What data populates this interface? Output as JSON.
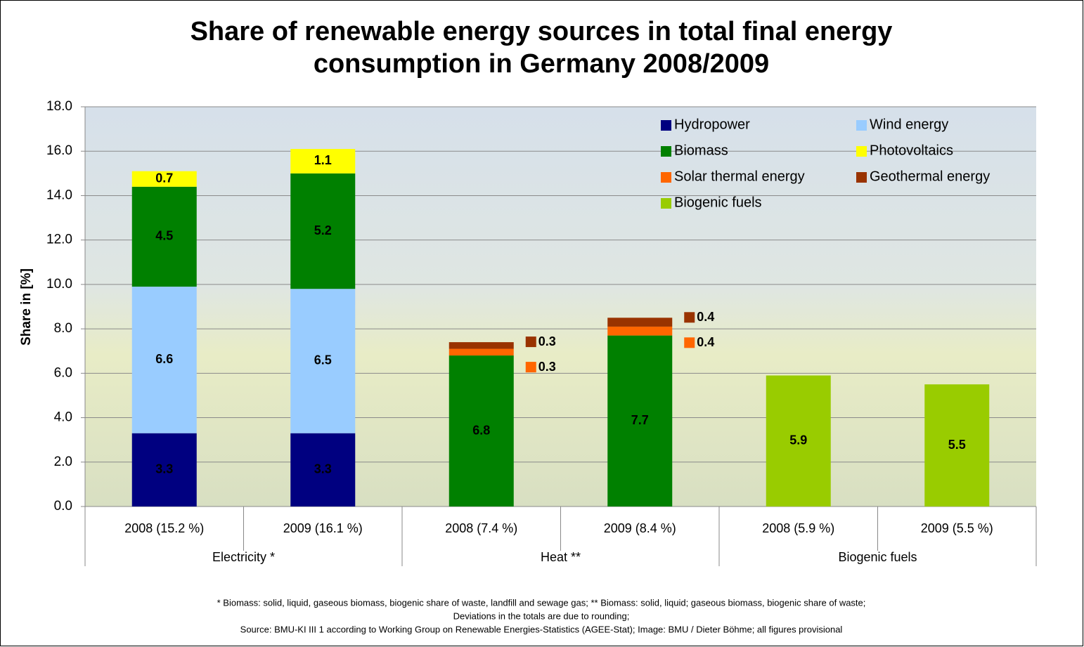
{
  "chart_data": {
    "type": "stacked_bar",
    "title": [
      "Share of renewable energy sources in total final energy",
      "consumption in Germany 2008/2009"
    ],
    "ylabel": "Share in [%]",
    "categories": [
      "2008 (15.2 %)",
      "2009 (16.1 %)",
      "2008 (7.4 %)",
      "2009 (8.4 %)",
      "2008 (5.9 %)",
      "2009 (5.5 %)"
    ],
    "groups": [
      "Electricity *",
      "Heat **",
      "Biogenic fuels"
    ],
    "series": [
      {
        "name": "Hydropower",
        "color": "#000080",
        "values": [
          3.3,
          3.3,
          null,
          null,
          null,
          null
        ]
      },
      {
        "name": "Wind energy",
        "color": "#99ccff",
        "values": [
          6.6,
          6.5,
          null,
          null,
          null,
          null
        ]
      },
      {
        "name": "Biomass",
        "color": "#008000",
        "values": [
          4.5,
          5.2,
          6.8,
          7.7,
          null,
          null
        ]
      },
      {
        "name": "Photovoltaics",
        "color": "#ffff00",
        "values": [
          0.7,
          1.1,
          null,
          null,
          null,
          null
        ]
      },
      {
        "name": "Solar thermal energy",
        "color": "#ff6600",
        "values": [
          null,
          null,
          0.3,
          0.4,
          null,
          null
        ]
      },
      {
        "name": "Geothermal energy",
        "color": "#993300",
        "values": [
          null,
          null,
          0.3,
          0.4,
          null,
          null
        ]
      },
      {
        "name": "Biogenic fuels",
        "color": "#99cc00",
        "values": [
          null,
          null,
          null,
          null,
          5.9,
          5.5
        ]
      }
    ],
    "ylim": [
      0,
      18
    ],
    "yticks": [
      {
        "value": 0,
        "label": "0.0"
      },
      {
        "value": 2,
        "label": "2.0"
      },
      {
        "value": 4,
        "label": "4.0"
      },
      {
        "value": 6,
        "label": "6.0"
      },
      {
        "value": 8,
        "label": "8.0"
      },
      {
        "value": 10,
        "label": "10.0"
      },
      {
        "value": 12,
        "label": "12.0"
      },
      {
        "value": 14,
        "label": "14.0"
      },
      {
        "value": 16,
        "label": "16.0"
      },
      {
        "value": 18,
        "label": "18.0"
      }
    ],
    "grid": true,
    "legend": "top-right",
    "footnotes": [
      "* Biomass: solid, liquid, gaseous biomass, biogenic share of waste, landfill and sewage gas; ** Biomass: solid, liquid; gaseous biomass, biogenic share of waste;",
      "Deviations in the totals are due to rounding;",
      "Source: BMU-KI III 1 according to Working Group on Renewable Energies-Statistics (AGEE-Stat); Image: BMU / Dieter Böhme; all figures provisional"
    ]
  }
}
